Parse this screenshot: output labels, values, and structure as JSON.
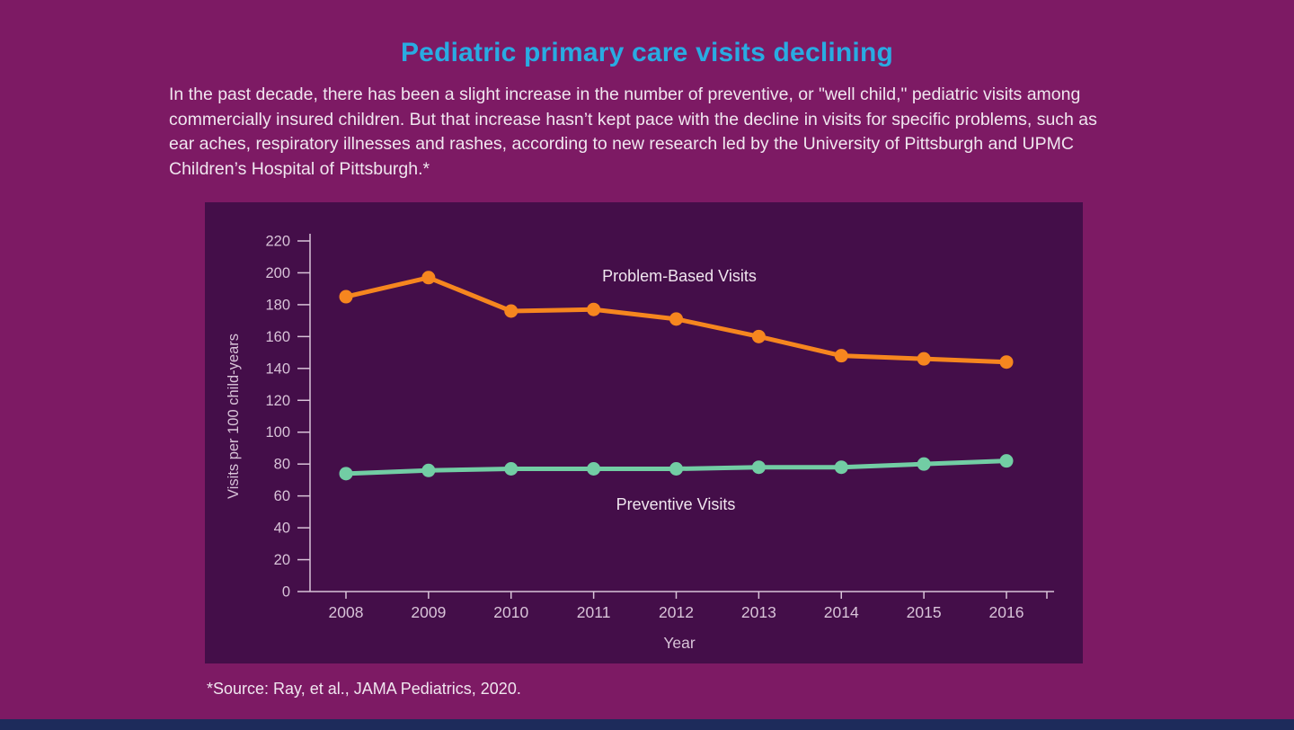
{
  "page": {
    "title": "Pediatric primary care visits declining",
    "description": "In the past decade, there has been a slight increase in the number of preventive, or \"well child,\" pediatric visits among commercially insured children. But that increase hasn’t kept pace with the decline in visits for specific problems, such as ear aches, respiratory illnesses and rashes, according to new research led by the University of Pittsburgh and UPMC Children’s Hospital of Pittsburgh.*",
    "source_note": "*Source: Ray, et al., JAMA Pediatrics, 2020."
  },
  "colors": {
    "background": "#7D1A64",
    "chart_panel": "#440E49",
    "title": "#29ABE2",
    "body_text": "#F0E6EF",
    "axis": "#D8C3D8",
    "bottom_strip": "#1D2B5B",
    "problem_based_line": "#F6861F",
    "preventive_line": "#72CDA4"
  },
  "chart_data": {
    "type": "line",
    "title": "",
    "xlabel": "Year",
    "ylabel": "Visits per 100 child-years",
    "x": [
      2008,
      2009,
      2010,
      2011,
      2012,
      2013,
      2014,
      2015,
      2016
    ],
    "ylim": [
      0,
      220
    ],
    "ytick_step": 20,
    "grid": false,
    "legend_position": "inline-annotations",
    "series": [
      {
        "name": "Problem-Based Visits",
        "color": "#F6861F",
        "values": [
          185,
          197,
          176,
          177,
          171,
          160,
          148,
          146,
          144
        ]
      },
      {
        "name": "Preventive Visits",
        "color": "#72CDA4",
        "values": [
          74,
          76,
          77,
          77,
          77,
          78,
          78,
          80,
          82
        ]
      }
    ]
  }
}
